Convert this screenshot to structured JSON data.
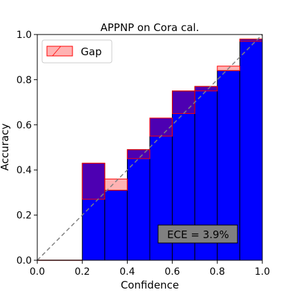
{
  "chart_data": {
    "type": "bar",
    "title": "APPNP on Cora cal.",
    "xlabel": "Confidence",
    "ylabel": "Accuracy",
    "xlim": [
      0,
      1
    ],
    "ylim": [
      0,
      1
    ],
    "xticks": [
      "0.0",
      "0.2",
      "0.4",
      "0.6",
      "0.8",
      "1.0"
    ],
    "yticks": [
      "0.0",
      "0.2",
      "0.4",
      "0.6",
      "0.8",
      "1.0"
    ],
    "bin_edges": [
      0.0,
      0.1,
      0.2,
      0.3,
      0.4,
      0.5,
      0.6,
      0.7,
      0.8,
      0.9,
      1.0
    ],
    "accuracy": [
      0,
      0,
      0.43,
      0.31,
      0.49,
      0.63,
      0.75,
      0.77,
      0.84,
      0.98
    ],
    "confidence": [
      0,
      0,
      0.27,
      0.36,
      0.45,
      0.55,
      0.65,
      0.75,
      0.86,
      0.97
    ],
    "legend": [
      "Gap"
    ],
    "legend_position": "upper-left",
    "annotation": "ECE = 3.9%",
    "colors": {
      "accuracy_bar": "#0000ff",
      "accuracy_edge": "#000000",
      "gap_fill": "#ff000055",
      "gap_edge": "#ff0000",
      "diagonal": "#808080",
      "annotation_bg": "#808080"
    }
  }
}
